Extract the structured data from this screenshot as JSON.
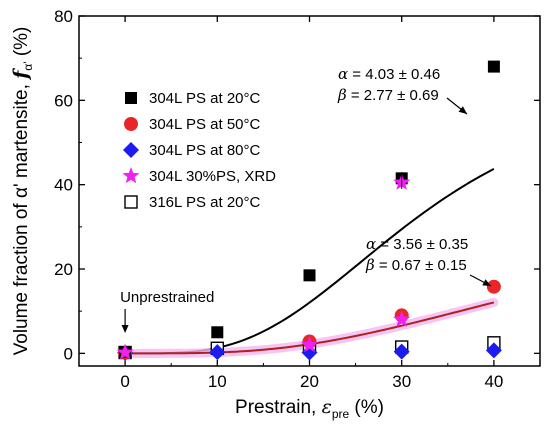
{
  "chart_data": {
    "type": "scatter",
    "xlabel": {
      "main": "Prestrain, ",
      "symbol": "ε",
      "sub": "pre",
      "unit": " (%)"
    },
    "ylabel": {
      "main": "Volume fraction of α' martensite, ",
      "symbol": "f",
      "sub": "α'",
      "unit": " (%)"
    },
    "xlim": [
      -5,
      45
    ],
    "ylim": [
      -3,
      80
    ],
    "xticks": [
      0,
      10,
      20,
      30,
      40
    ],
    "yticks": [
      0,
      20,
      40,
      60,
      80
    ],
    "grid": false,
    "legend_position": "upper-left",
    "series": [
      {
        "name": "304L PS at 20°C",
        "marker": "square",
        "color": "#000000",
        "points": [
          [
            0,
            0.3
          ],
          [
            10,
            5.0
          ],
          [
            20,
            18.5
          ],
          [
            30,
            41.5
          ],
          [
            40,
            68.0
          ]
        ]
      },
      {
        "name": "304L PS at 50°C",
        "marker": "circle",
        "color": "#e8262a",
        "points": [
          [
            0,
            0.2
          ],
          [
            20,
            2.8
          ],
          [
            30,
            9.0
          ],
          [
            40,
            15.8
          ]
        ]
      },
      {
        "name": "304L PS at 80°C",
        "marker": "diamond",
        "color": "#1c1cf0",
        "points": [
          [
            0,
            0.1
          ],
          [
            10,
            0.3
          ],
          [
            20,
            0.2
          ],
          [
            30,
            0.4
          ],
          [
            40,
            0.7
          ]
        ]
      },
      {
        "name": "304L 30%PS, XRD",
        "marker": "star",
        "color": "#f020f0",
        "points": [
          [
            0,
            0.2
          ],
          [
            20,
            2.0
          ],
          [
            30,
            8.0
          ],
          [
            30,
            40.5
          ]
        ]
      },
      {
        "name": "316L PS at 20°C",
        "marker": "open-square",
        "color": "#000000",
        "points": [
          [
            0,
            0.2
          ],
          [
            10,
            1.2
          ],
          [
            20,
            1.5
          ],
          [
            30,
            1.5
          ],
          [
            40,
            2.5
          ]
        ]
      }
    ],
    "fits": [
      {
        "color": "#000000",
        "alpha_text": "α = 4.03 ± 0.46",
        "beta_text": "β = 2.77 ± 0.69",
        "fmax": 68.5,
        "alpha": 4.03,
        "beta": 2.77,
        "n": 4.5,
        "glow": false
      },
      {
        "color": "#b02020",
        "alpha_text": "α = 3.56 ± 0.35",
        "beta_text": "β = 0.67 ± 0.15",
        "fmax": 68.5,
        "alpha": 3.56,
        "beta": 0.67,
        "n": 4.5,
        "glow": true
      }
    ],
    "annotations": [
      {
        "text": "Unprestrained",
        "x": 0,
        "y": 10
      }
    ]
  }
}
